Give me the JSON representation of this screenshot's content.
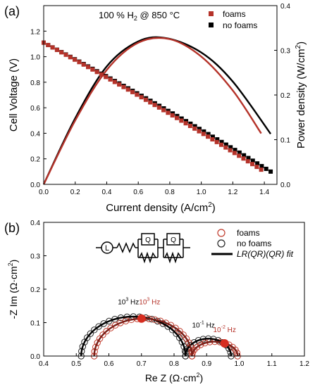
{
  "chart_data": [
    {
      "type": "scatter",
      "panel_label": "(a)",
      "annotation_parts": [
        "100 % H",
        "2",
        " @ 850 °C"
      ],
      "xlabel_parts": [
        "Current density (A/cm",
        "2",
        ")"
      ],
      "ylabel": "Cell Voltage (V)",
      "y2label_parts": [
        "Power density (W/cm",
        "2",
        ")"
      ],
      "xlim": [
        0.0,
        1.48
      ],
      "ylim": [
        0.0,
        1.4
      ],
      "y2lim": [
        0.0,
        0.4
      ],
      "x_ticks": [
        "0.0",
        "0.2",
        "0.4",
        "0.6",
        "0.8",
        "1.0",
        "1.2",
        "1.4"
      ],
      "y_ticks": [
        "0.0",
        "0.2",
        "0.4",
        "0.6",
        "0.8",
        "1.0",
        "1.2"
      ],
      "y2_ticks": [
        "0.0",
        "0.1",
        "0.2",
        "0.3",
        "0.4"
      ],
      "legend_position": "top-right",
      "colors": {
        "foams": "#b5332a",
        "no_foams": "#000000"
      },
      "series": [
        {
          "name": "foams",
          "axis": "left",
          "kind": "voltage",
          "v0": 1.11,
          "v_end": 0.115,
          "x_end": 1.38,
          "n": 50
        },
        {
          "name": "no foams",
          "axis": "left",
          "kind": "voltage",
          "v0": 1.11,
          "v_end": 0.1,
          "x_end": 1.44,
          "n": 52
        },
        {
          "name": "foams",
          "axis": "right",
          "kind": "power",
          "points": [
            [
              0.0,
              0.0
            ],
            [
              0.2,
              0.143
            ],
            [
              0.4,
              0.256
            ],
            [
              0.6,
              0.317
            ],
            [
              0.8,
              0.325
            ],
            [
              1.0,
              0.286
            ],
            [
              1.2,
              0.21
            ],
            [
              1.38,
              0.114
            ]
          ]
        },
        {
          "name": "no foams",
          "axis": "right",
          "kind": "power",
          "points": [
            [
              0.0,
              0.0
            ],
            [
              0.2,
              0.148
            ],
            [
              0.4,
              0.264
            ],
            [
              0.6,
              0.32
            ],
            [
              0.78,
              0.327
            ],
            [
              1.0,
              0.295
            ],
            [
              1.2,
              0.23
            ],
            [
              1.44,
              0.113
            ]
          ]
        }
      ]
    },
    {
      "type": "scatter",
      "panel_label": "(b)",
      "xlabel_parts": [
        "Re Z (Ω·cm",
        "2",
        ")"
      ],
      "ylabel_parts": [
        "-Z Im (Ω·cm",
        "2",
        ")"
      ],
      "xlim": [
        0.4,
        1.2
      ],
      "ylim": [
        0.0,
        0.4
      ],
      "x_ticks": [
        "0.4",
        "0.5",
        "0.6",
        "0.7",
        "0.8",
        "0.9",
        "1.0",
        "1.1",
        "1.2"
      ],
      "y_ticks": [
        "0.0",
        "0.1",
        "0.2",
        "0.3",
        "0.4"
      ],
      "legend_position": "top-right",
      "legend": [
        {
          "name": "foams",
          "marker": "circle-open",
          "color": "#c03a2b"
        },
        {
          "name": "no foams",
          "marker": "circle-open",
          "color": "#222222"
        },
        {
          "name": "LR(QR)(QR) fit",
          "marker": "line",
          "color": "#000000"
        }
      ],
      "circuit_labels": [
        "L",
        "Q",
        "Q"
      ],
      "freq_labels": [
        {
          "text_base": "10",
          "exp": "3",
          "unit": " Hz",
          "x": 0.66,
          "y": 0.155,
          "color": "#000000"
        },
        {
          "text_base": "10",
          "exp": "3",
          "unit": " Hz",
          "x": 0.725,
          "y": 0.155,
          "color": "#b5332a"
        },
        {
          "text_base": "10",
          "exp": "-1",
          "unit": " Hz",
          "x": 0.89,
          "y": 0.085,
          "color": "#000000"
        },
        {
          "text_base": "10",
          "exp": "-2",
          "unit": " Hz",
          "x": 0.955,
          "y": 0.072,
          "color": "#b5332a"
        }
      ],
      "highlighted_points": [
        {
          "series": "foams",
          "x": 0.7,
          "y": 0.112
        },
        {
          "series": "foams",
          "x": 0.955,
          "y": 0.038
        }
      ],
      "series": [
        {
          "name": "foams",
          "arcs": [
            {
              "x1": 0.555,
              "x2": 0.855,
              "h": 0.112
            },
            {
              "x1": 0.855,
              "x2": 0.995,
              "h": 0.043
            }
          ]
        },
        {
          "name": "no foams",
          "arcs": [
            {
              "x1": 0.515,
              "x2": 0.835,
              "h": 0.118
            },
            {
              "x1": 0.835,
              "x2": 0.975,
              "h": 0.052
            }
          ]
        }
      ]
    }
  ]
}
